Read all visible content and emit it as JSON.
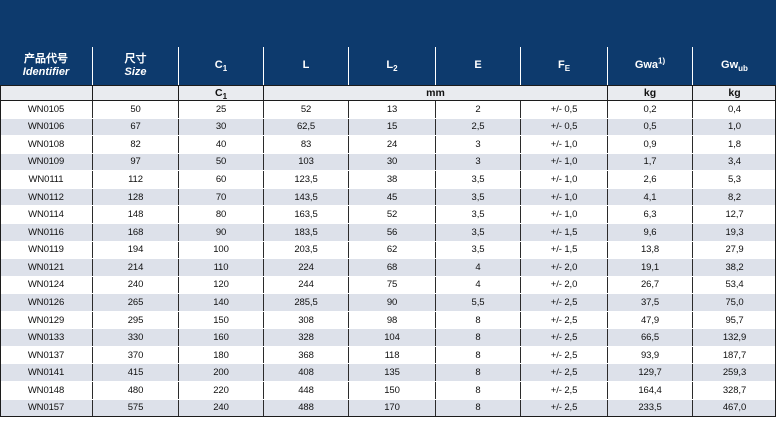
{
  "colors": {
    "header_bg": "#0d3a6d",
    "header_text": "#ffffff",
    "subheader_bg": "#e9ebef",
    "row_bg": "#ffffff",
    "row_alt_bg": "#dde1ea",
    "border_dark": "#1c1c1c"
  },
  "table": {
    "columns": [
      {
        "zh": "产品代号",
        "en": "Identifier"
      },
      {
        "zh": "尺寸",
        "en": "Size"
      },
      {
        "base": "C",
        "sub": "1"
      },
      {
        "base": "L",
        "sub": ""
      },
      {
        "base": "L",
        "sub": "2"
      },
      {
        "base": "E",
        "sub": ""
      },
      {
        "base": "F",
        "sub": "E"
      },
      {
        "base": "Gwa",
        "sup": "1)"
      },
      {
        "base": "Gw",
        "sub": "ub"
      }
    ],
    "units_row": {
      "col1": "",
      "col2": "",
      "c1_base": "C",
      "c1_sub": "1",
      "mm": "mm",
      "kg1": "kg",
      "kg2": "kg"
    },
    "rows": [
      [
        "WN0105",
        "50",
        "25",
        "52",
        "13",
        "2",
        "+/- 0,5",
        "0,2",
        "0,4"
      ],
      [
        "WN0106",
        "67",
        "30",
        "62,5",
        "15",
        "2,5",
        "+/- 0,5",
        "0,5",
        "1,0"
      ],
      [
        "WN0108",
        "82",
        "40",
        "83",
        "24",
        "3",
        "+/- 1,0",
        "0,9",
        "1,8"
      ],
      [
        "WN0109",
        "97",
        "50",
        "103",
        "30",
        "3",
        "+/- 1,0",
        "1,7",
        "3,4"
      ],
      [
        "WN0111",
        "112",
        "60",
        "123,5",
        "38",
        "3,5",
        "+/- 1,0",
        "2,6",
        "5,3"
      ],
      [
        "WN0112",
        "128",
        "70",
        "143,5",
        "45",
        "3,5",
        "+/- 1,0",
        "4,1",
        "8,2"
      ],
      [
        "WN0114",
        "148",
        "80",
        "163,5",
        "52",
        "3,5",
        "+/- 1,0",
        "6,3",
        "12,7"
      ],
      [
        "WN0116",
        "168",
        "90",
        "183,5",
        "56",
        "3,5",
        "+/- 1,5",
        "9,6",
        "19,3"
      ],
      [
        "WN0119",
        "194",
        "100",
        "203,5",
        "62",
        "3,5",
        "+/- 1,5",
        "13,8",
        "27,9"
      ],
      [
        "WN0121",
        "214",
        "110",
        "224",
        "68",
        "4",
        "+/- 2,0",
        "19,1",
        "38,2"
      ],
      [
        "WN0124",
        "240",
        "120",
        "244",
        "75",
        "4",
        "+/- 2,0",
        "26,7",
        "53,4"
      ],
      [
        "WN0126",
        "265",
        "140",
        "285,5",
        "90",
        "5,5",
        "+/- 2,5",
        "37,5",
        "75,0"
      ],
      [
        "WN0129",
        "295",
        "150",
        "308",
        "98",
        "8",
        "+/- 2,5",
        "47,9",
        "95,7"
      ],
      [
        "WN0133",
        "330",
        "160",
        "328",
        "104",
        "8",
        "+/- 2,5",
        "66,5",
        "132,9"
      ],
      [
        "WN0137",
        "370",
        "180",
        "368",
        "118",
        "8",
        "+/- 2,5",
        "93,9",
        "187,7"
      ],
      [
        "WN0141",
        "415",
        "200",
        "408",
        "135",
        "8",
        "+/- 2,5",
        "129,7",
        "259,3"
      ],
      [
        "WN0148",
        "480",
        "220",
        "448",
        "150",
        "8",
        "+/- 2,5",
        "164,4",
        "328,7"
      ],
      [
        "WN0157",
        "575",
        "240",
        "488",
        "170",
        "8",
        "+/- 2,5",
        "233,5",
        "467,0"
      ]
    ]
  }
}
